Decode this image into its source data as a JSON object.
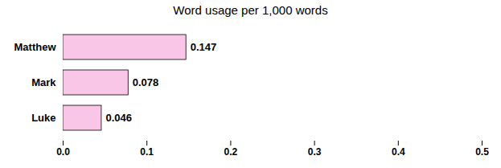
{
  "chart_data": {
    "type": "bar",
    "orientation": "horizontal",
    "title": "Word usage per 1,000 words",
    "categories": [
      "Matthew",
      "Mark",
      "Luke"
    ],
    "values": [
      0.147,
      0.078,
      0.046
    ],
    "color": "#f9c6e8",
    "xlim": [
      0.0,
      0.5
    ],
    "xticks": [
      {
        "value": 0,
        "label": "0.0"
      },
      0.1,
      0.2,
      0.3,
      0.4,
      0.5
    ],
    "data_labels": true,
    "grid": false
  }
}
